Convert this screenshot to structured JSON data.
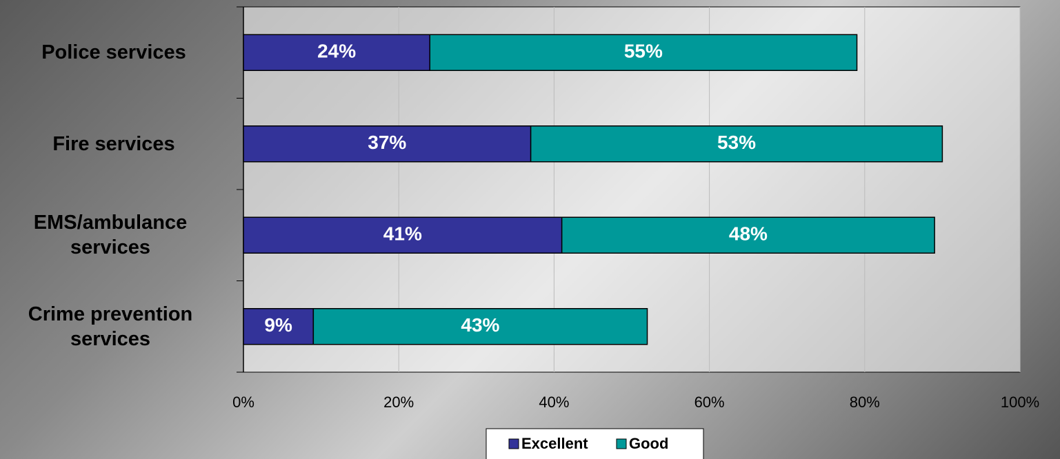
{
  "chart_data": {
    "type": "stacked-bar-horizontal",
    "categories": [
      "Police services",
      "Fire services",
      "EMS/ambulance services",
      "Crime prevention services"
    ],
    "series": [
      {
        "name": "Excellent",
        "color": "#333399",
        "values": [
          24,
          37,
          41,
          9
        ],
        "value_labels": [
          "24%",
          "37%",
          "41%",
          "9%"
        ]
      },
      {
        "name": "Good",
        "color": "#009999",
        "values": [
          55,
          53,
          48,
          43
        ],
        "value_labels": [
          "55%",
          "53%",
          "48%",
          "43%"
        ]
      }
    ],
    "xlim": [
      0,
      100
    ],
    "xticks": [
      {
        "value": 0,
        "label": "0%"
      },
      {
        "value": 20,
        "label": "20%"
      },
      {
        "value": 40,
        "label": "40%"
      },
      {
        "value": 60,
        "label": "60%"
      },
      {
        "value": 80,
        "label": "80%"
      },
      {
        "value": 100,
        "label": "100%"
      }
    ],
    "grid": true,
    "legend": "bottom"
  }
}
